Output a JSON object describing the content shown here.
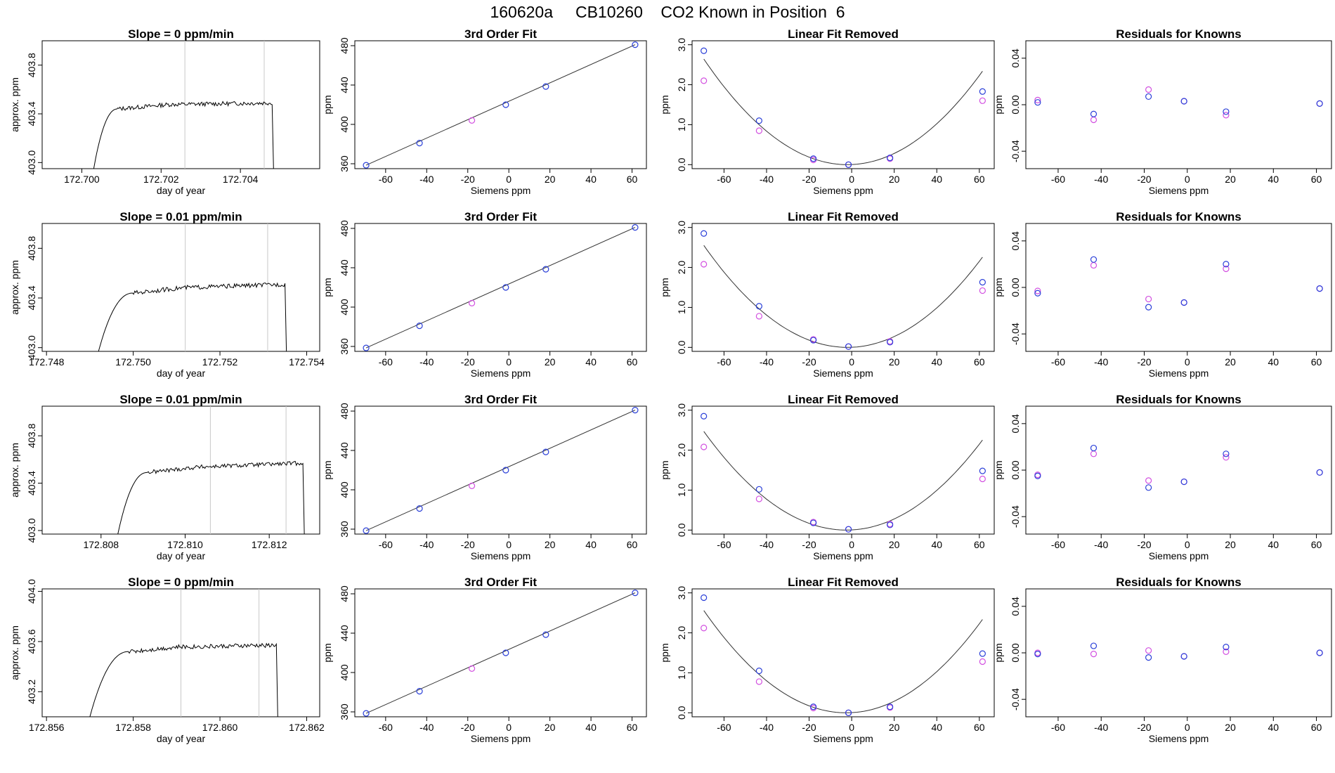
{
  "page_title": "160620a     CB10260    CO2 Known in Position  6",
  "colors": {
    "blue": "#2a3fd8",
    "magenta": "#d24fe0",
    "lightblue": "#4fa0e8",
    "trace": "#000000",
    "red": "#e03030",
    "vline": "#c8c8c8"
  },
  "chart_data": [
    {
      "type": "line",
      "row": 0,
      "title": "Slope =  0  ppm/min",
      "xlabel": "day of year",
      "ylabel": "approx. ppm",
      "xlim": [
        172.699,
        172.706
      ],
      "ylim": [
        402.95,
        404.0
      ],
      "xticks": [
        "172.700",
        "172.702",
        "172.704"
      ],
      "xtick_values": [
        172.7,
        172.702,
        172.704
      ],
      "yticks": [
        "403.0",
        "403.4",
        "403.8"
      ],
      "ytick_values": [
        403.0,
        403.4,
        403.8
      ],
      "vlines": [
        172.7026,
        172.7046
      ],
      "trace": {
        "x_start": 172.7003,
        "x_rise_end": 172.7009,
        "x_end": 172.7048,
        "start": 402.95,
        "plateau": 403.47,
        "drift": 0.02
      }
    },
    {
      "type": "scatter",
      "row": 0,
      "title": "3rd Order Fit",
      "xlabel": "Siemens ppm",
      "ylabel": "ppm",
      "xlim": [
        -75,
        67
      ],
      "ylim": [
        355,
        485
      ],
      "xticks": [
        "-60",
        "-40",
        "-20",
        "0",
        "20",
        "40",
        "60"
      ],
      "xtick_values": [
        -60,
        -40,
        -20,
        0,
        20,
        40,
        60
      ],
      "yticks": [
        "360",
        "400",
        "440",
        "480"
      ],
      "ytick_values": [
        360,
        400,
        440,
        480
      ],
      "x": [
        -69.5,
        -43.5,
        -18.0,
        -1.5,
        18.0,
        61.5
      ],
      "y": [
        358.5,
        381.0,
        404.0,
        420.0,
        438.5,
        481.0
      ],
      "point_colors": [
        "blue",
        "blue",
        "magenta",
        "blue",
        "blue",
        "blue"
      ]
    },
    {
      "type": "scatter",
      "row": 0,
      "title": "Linear Fit Removed",
      "xlabel": "Siemens ppm",
      "ylabel": "ppm",
      "xlim": [
        -75,
        67
      ],
      "ylim": [
        -0.1,
        3.1
      ],
      "xticks": [
        "-60",
        "-40",
        "-20",
        "0",
        "20",
        "40",
        "60"
      ],
      "xtick_values": [
        -60,
        -40,
        -20,
        0,
        20,
        40,
        60
      ],
      "yticks": [
        "0.0",
        "1.0",
        "2.0",
        "3.0"
      ],
      "ytick_values": [
        0,
        1,
        2,
        3
      ],
      "x": [
        -69.5,
        -43.5,
        -18.0,
        -1.5,
        18.0,
        61.5
      ],
      "series": [
        {
          "color": "blue",
          "y": [
            2.85,
            1.1,
            0.15,
            0.0,
            0.17,
            1.83
          ]
        },
        {
          "color": "magenta",
          "y": [
            2.1,
            0.85,
            0.12,
            0.0,
            0.15,
            1.6
          ]
        }
      ],
      "curve": {
        "a": 0.00058,
        "h": -2.0,
        "k": 0.0
      }
    },
    {
      "type": "scatter",
      "row": 0,
      "title": "Residuals for Knowns",
      "xlabel": "Siemens ppm",
      "ylabel": "ppm",
      "xlim": [
        -75,
        67
      ],
      "ylim": [
        -0.055,
        0.055
      ],
      "xticks": [
        "-60",
        "-40",
        "-20",
        "0",
        "20",
        "40",
        "60"
      ],
      "xtick_values": [
        -60,
        -40,
        -20,
        0,
        20,
        40,
        60
      ],
      "yticks": [
        "-0.04",
        "0.00",
        "0.04"
      ],
      "ytick_values": [
        -0.04,
        0.0,
        0.04
      ],
      "x": [
        -69.5,
        -43.5,
        -18.0,
        -1.5,
        18.0,
        61.5
      ],
      "series": [
        {
          "color": "blue",
          "y": [
            0.002,
            -0.008,
            0.007,
            0.003,
            -0.006,
            0.001
          ]
        },
        {
          "color": "magenta",
          "y": [
            0.004,
            -0.013,
            0.013,
            0.003,
            -0.009,
            0.001
          ]
        }
      ]
    },
    {
      "type": "line",
      "row": 1,
      "title": "Slope =  0.01  ppm/min",
      "xlabel": "day of year",
      "ylabel": "approx. ppm",
      "xlim": [
        172.7479,
        172.7543
      ],
      "ylim": [
        402.97,
        404.0
      ],
      "xticks": [
        "172.748",
        "172.750",
        "172.752",
        "172.754"
      ],
      "xtick_values": [
        172.748,
        172.75,
        172.752,
        172.754
      ],
      "yticks": [
        "403.0",
        "403.4",
        "403.8"
      ],
      "ytick_values": [
        403.0,
        403.4,
        403.8
      ],
      "vlines": [
        172.7512,
        172.7531
      ],
      "trace": {
        "x_start": 172.7492,
        "x_rise_end": 172.75,
        "x_end": 172.7535,
        "start": 402.97,
        "plateau": 403.47,
        "drift": 0.04
      }
    },
    {
      "type": "scatter",
      "row": 1,
      "title": "3rd Order Fit",
      "xlabel": "Siemens ppm",
      "ylabel": "ppm",
      "xlim": [
        -75,
        67
      ],
      "ylim": [
        355,
        485
      ],
      "xticks": [
        "-60",
        "-40",
        "-20",
        "0",
        "20",
        "40",
        "60"
      ],
      "xtick_values": [
        -60,
        -40,
        -20,
        0,
        20,
        40,
        60
      ],
      "yticks": [
        "360",
        "400",
        "440",
        "480"
      ],
      "ytick_values": [
        360,
        400,
        440,
        480
      ],
      "x": [
        -69.5,
        -43.5,
        -18.0,
        -1.5,
        18.0,
        61.5
      ],
      "y": [
        358.5,
        381.0,
        404.0,
        420.0,
        438.5,
        481.0
      ],
      "point_colors": [
        "blue",
        "blue",
        "magenta",
        "blue",
        "blue",
        "blue"
      ]
    },
    {
      "type": "scatter",
      "row": 1,
      "title": "Linear Fit Removed",
      "xlabel": "Siemens ppm",
      "ylabel": "ppm",
      "xlim": [
        -75,
        67
      ],
      "ylim": [
        -0.1,
        3.1
      ],
      "xticks": [
        "-60",
        "-40",
        "-20",
        "0",
        "20",
        "40",
        "60"
      ],
      "xtick_values": [
        -60,
        -40,
        -20,
        0,
        20,
        40,
        60
      ],
      "yticks": [
        "0.0",
        "1.0",
        "2.0",
        "3.0"
      ],
      "ytick_values": [
        0,
        1,
        2,
        3
      ],
      "x": [
        -69.5,
        -43.5,
        -18.0,
        -1.5,
        18.0,
        61.5
      ],
      "series": [
        {
          "color": "blue",
          "y": [
            2.85,
            1.03,
            0.18,
            0.02,
            0.13,
            1.63
          ]
        },
        {
          "color": "magenta",
          "y": [
            2.08,
            0.78,
            0.2,
            0.02,
            0.15,
            1.42
          ]
        }
      ],
      "curve": {
        "a": 0.00056,
        "h": -2.0,
        "k": 0.0
      }
    },
    {
      "type": "scatter",
      "row": 1,
      "title": "Residuals for Knowns",
      "xlabel": "Siemens ppm",
      "ylabel": "ppm",
      "xlim": [
        -75,
        67
      ],
      "ylim": [
        -0.055,
        0.055
      ],
      "xticks": [
        "-60",
        "-40",
        "-20",
        "0",
        "20",
        "40",
        "60"
      ],
      "xtick_values": [
        -60,
        -40,
        -20,
        0,
        20,
        40,
        60
      ],
      "yticks": [
        "-0.04",
        "0.00",
        "0.04"
      ],
      "ytick_values": [
        -0.04,
        0.0,
        0.04
      ],
      "x": [
        -69.5,
        -43.5,
        -18.0,
        -1.5,
        18.0,
        61.5
      ],
      "series": [
        {
          "color": "blue",
          "y": [
            -0.005,
            0.024,
            -0.017,
            -0.013,
            0.02,
            -0.001
          ]
        },
        {
          "color": "magenta",
          "y": [
            -0.003,
            0.019,
            -0.01,
            -0.013,
            0.016,
            -0.001
          ]
        }
      ]
    },
    {
      "type": "line",
      "row": 2,
      "title": "Slope =  0.01  ppm/min",
      "xlabel": "day of year",
      "ylabel": "approx. ppm",
      "xlim": [
        172.8066,
        172.8132
      ],
      "ylim": [
        402.97,
        404.05
      ],
      "xticks": [
        "172.808",
        "172.810",
        "172.812"
      ],
      "xtick_values": [
        172.808,
        172.81,
        172.812
      ],
      "yticks": [
        "403.0",
        "403.4",
        "403.8"
      ],
      "ytick_values": [
        403.0,
        403.4,
        403.8
      ],
      "vlines": [
        172.8106,
        172.8124
      ],
      "trace": {
        "x_start": 172.8084,
        "x_rise_end": 172.8091,
        "x_end": 172.8128,
        "start": 402.97,
        "plateau": 403.52,
        "drift": 0.05
      }
    },
    {
      "type": "scatter",
      "row": 2,
      "title": "3rd Order Fit",
      "xlabel": "Siemens ppm",
      "ylabel": "ppm",
      "xlim": [
        -75,
        67
      ],
      "ylim": [
        355,
        485
      ],
      "xticks": [
        "-60",
        "-40",
        "-20",
        "0",
        "20",
        "40",
        "60"
      ],
      "xtick_values": [
        -60,
        -40,
        -20,
        0,
        20,
        40,
        60
      ],
      "yticks": [
        "360",
        "400",
        "440",
        "480"
      ],
      "ytick_values": [
        360,
        400,
        440,
        480
      ],
      "x": [
        -69.5,
        -43.5,
        -18.0,
        -1.5,
        18.0,
        61.5
      ],
      "y": [
        358.5,
        381.0,
        404.0,
        420.0,
        438.5,
        481.0
      ],
      "point_colors": [
        "blue",
        "blue",
        "magenta",
        "blue",
        "blue",
        "blue"
      ]
    },
    {
      "type": "scatter",
      "row": 2,
      "title": "Linear Fit Removed",
      "xlabel": "Siemens ppm",
      "ylabel": "ppm",
      "xlim": [
        -75,
        67
      ],
      "ylim": [
        -0.1,
        3.1
      ],
      "xticks": [
        "-60",
        "-40",
        "-20",
        "0",
        "20",
        "40",
        "60"
      ],
      "xtick_values": [
        -60,
        -40,
        -20,
        0,
        20,
        40,
        60
      ],
      "yticks": [
        "0.0",
        "1.0",
        "2.0",
        "3.0"
      ],
      "ytick_values": [
        0,
        1,
        2,
        3
      ],
      "x": [
        -69.5,
        -43.5,
        -18.0,
        -1.5,
        18.0,
        61.5
      ],
      "series": [
        {
          "color": "blue",
          "y": [
            2.85,
            1.02,
            0.18,
            0.02,
            0.13,
            1.48
          ]
        },
        {
          "color": "magenta",
          "y": [
            2.08,
            0.78,
            0.2,
            0.02,
            0.15,
            1.28
          ]
        }
      ],
      "curve": {
        "a": 0.00055,
        "h": -2.5,
        "k": 0.0
      }
    },
    {
      "type": "scatter",
      "row": 2,
      "title": "Residuals for Knowns",
      "xlabel": "Siemens ppm",
      "ylabel": "ppm",
      "xlim": [
        -75,
        67
      ],
      "ylim": [
        -0.055,
        0.055
      ],
      "xticks": [
        "-60",
        "-40",
        "-20",
        "0",
        "20",
        "40",
        "60"
      ],
      "xtick_values": [
        -60,
        -40,
        -20,
        0,
        20,
        40,
        60
      ],
      "yticks": [
        "-0.04",
        "0.00",
        "0.04"
      ],
      "ytick_values": [
        -0.04,
        0.0,
        0.04
      ],
      "x": [
        -69.5,
        -43.5,
        -18.0,
        -1.5,
        18.0,
        61.5
      ],
      "series": [
        {
          "color": "blue",
          "y": [
            -0.005,
            0.019,
            -0.015,
            -0.01,
            0.014,
            -0.002
          ]
        },
        {
          "color": "magenta",
          "y": [
            -0.004,
            0.014,
            -0.009,
            -0.01,
            0.011,
            -0.002
          ]
        }
      ]
    },
    {
      "type": "line",
      "row": 3,
      "title": "Slope =  0  ppm/min",
      "xlabel": "day of year",
      "ylabel": "approx. ppm",
      "xlim": [
        172.8559,
        172.8623
      ],
      "ylim": [
        403.0,
        404.02
      ],
      "xticks": [
        "172.856",
        "172.858",
        "172.860",
        "172.862"
      ],
      "xtick_values": [
        172.856,
        172.858,
        172.86,
        172.862
      ],
      "yticks": [
        "403.2",
        "403.6",
        "404.0"
      ],
      "ytick_values": [
        403.2,
        403.6,
        404.0
      ],
      "vlines": [
        172.8591,
        172.8609
      ],
      "trace": {
        "x_start": 172.857,
        "x_rise_end": 172.8579,
        "x_end": 172.8613,
        "start": 403.0,
        "plateau": 403.55,
        "drift": 0.02
      }
    },
    {
      "type": "scatter",
      "row": 3,
      "title": "3rd Order Fit",
      "xlabel": "Siemens ppm",
      "ylabel": "ppm",
      "xlim": [
        -75,
        67
      ],
      "ylim": [
        355,
        485
      ],
      "xticks": [
        "-60",
        "-40",
        "-20",
        "0",
        "20",
        "40",
        "60"
      ],
      "xtick_values": [
        -60,
        -40,
        -20,
        0,
        20,
        40,
        60
      ],
      "yticks": [
        "360",
        "400",
        "440",
        "480"
      ],
      "ytick_values": [
        360,
        400,
        440,
        480
      ],
      "x": [
        -69.5,
        -43.5,
        -18.0,
        -1.5,
        18.0,
        61.5
      ],
      "y": [
        358.5,
        381.0,
        404.0,
        420.0,
        438.5,
        481.0
      ],
      "point_colors": [
        "blue",
        "blue",
        "magenta",
        "blue",
        "blue",
        "blue"
      ]
    },
    {
      "type": "scatter",
      "row": 3,
      "title": "Linear Fit Removed",
      "xlabel": "Siemens ppm",
      "ylabel": "ppm",
      "xlim": [
        -75,
        67
      ],
      "ylim": [
        -0.1,
        3.1
      ],
      "xticks": [
        "-60",
        "-40",
        "-20",
        "0",
        "20",
        "40",
        "60"
      ],
      "xtick_values": [
        -60,
        -40,
        -20,
        0,
        20,
        40,
        60
      ],
      "yticks": [
        "0.0",
        "1.0",
        "2.0",
        "3.0"
      ],
      "ytick_values": [
        0,
        1,
        2,
        3
      ],
      "x": [
        -69.5,
        -43.5,
        -18.0,
        -1.5,
        18.0,
        61.5
      ],
      "series": [
        {
          "color": "blue",
          "y": [
            2.88,
            1.05,
            0.15,
            0.0,
            0.15,
            1.48
          ]
        },
        {
          "color": "magenta",
          "y": [
            2.12,
            0.78,
            0.12,
            0.0,
            0.13,
            1.28
          ]
        }
      ],
      "curve": {
        "a": 0.00057,
        "h": -2.5,
        "k": 0.0
      }
    },
    {
      "type": "scatter",
      "row": 3,
      "title": "Residuals for Knowns",
      "xlabel": "Siemens ppm",
      "ylabel": "ppm",
      "xlim": [
        -75,
        67
      ],
      "ylim": [
        -0.055,
        0.055
      ],
      "xticks": [
        "-60",
        "-40",
        "-20",
        "0",
        "20",
        "40",
        "60"
      ],
      "xtick_values": [
        -60,
        -40,
        -20,
        0,
        20,
        40,
        60
      ],
      "yticks": [
        "-0.04",
        "0.00",
        "0.04"
      ],
      "ytick_values": [
        -0.04,
        0.0,
        0.04
      ],
      "x": [
        -69.5,
        -43.5,
        -18.0,
        -1.5,
        18.0,
        61.5
      ],
      "series": [
        {
          "color": "blue",
          "y": [
            -0.001,
            0.006,
            -0.004,
            -0.003,
            0.005,
            0.0
          ]
        },
        {
          "color": "magenta",
          "y": [
            0.0,
            -0.001,
            0.002,
            -0.003,
            0.001,
            0.0
          ]
        }
      ]
    }
  ]
}
